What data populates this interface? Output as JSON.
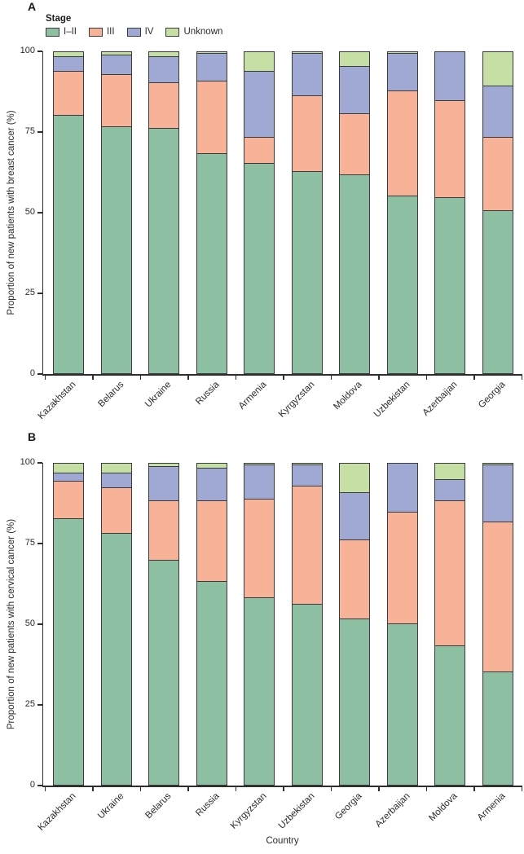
{
  "colors": {
    "segment_border": "#3b3b3b",
    "axis": "#2e2e2e",
    "text": "#2b2b2b",
    "background": "#ffffff"
  },
  "legend": {
    "title": "Stage",
    "items": [
      {
        "label": "I–II",
        "color": "#8dbfa2"
      },
      {
        "label": "III",
        "color": "#f8b298"
      },
      {
        "label": "IV",
        "color": "#9fa9d4"
      },
      {
        "label": "Unknown",
        "color": "#c6dfa5"
      }
    ]
  },
  "chart_data": [
    {
      "type": "bar",
      "stacked": true,
      "title": "A",
      "categories": [
        "Kazakhstan",
        "Belarus",
        "Ukraine",
        "Russia",
        "Armenia",
        "Kyrgyzstan",
        "Moldova",
        "Uzbekistan",
        "Azerbaijan",
        "Georgia"
      ],
      "series": [
        {
          "name": "I–II",
          "values": [
            80.5,
            77,
            76.5,
            68.5,
            65.5,
            63,
            62,
            55.5,
            55,
            51
          ]
        },
        {
          "name": "III",
          "values": [
            13.5,
            16,
            14,
            22.5,
            8,
            23.5,
            19,
            32.5,
            30,
            22.5
          ]
        },
        {
          "name": "IV",
          "values": [
            4.5,
            6,
            8,
            8.5,
            20.5,
            13,
            14.5,
            11.5,
            15,
            16
          ]
        },
        {
          "name": "Unknown",
          "values": [
            1.5,
            1,
            1.5,
            0.5,
            6,
            0.5,
            4.5,
            0.5,
            0,
            10.5
          ]
        }
      ],
      "xlabel": "",
      "ylabel": "Proportion of new patients with breast cancer (%)",
      "ylim": [
        0,
        100
      ],
      "yticks": [
        0,
        25,
        50,
        75,
        100
      ],
      "grid": false,
      "legend_position": "top-left"
    },
    {
      "type": "bar",
      "stacked": true,
      "title": "B",
      "categories": [
        "Kazakhstan",
        "Ukraine",
        "Belarus",
        "Russia",
        "Kyrgyzstan",
        "Uzbekistan",
        "Georgia",
        "Azerbaijan",
        "Moldova",
        "Armenia"
      ],
      "series": [
        {
          "name": "I–II",
          "values": [
            83,
            78.5,
            70,
            63.5,
            58.5,
            56.5,
            52,
            50.5,
            43.5,
            35.5
          ]
        },
        {
          "name": "III",
          "values": [
            11.5,
            14,
            18.5,
            25,
            30.5,
            36.5,
            24.5,
            34.5,
            45,
            46.5
          ]
        },
        {
          "name": "IV",
          "values": [
            2.5,
            4.5,
            10.5,
            10,
            10.5,
            6.5,
            14.5,
            15,
            6.5,
            17.5
          ]
        },
        {
          "name": "Unknown",
          "values": [
            3,
            3,
            1,
            1.5,
            0.5,
            0.5,
            9,
            0,
            5,
            0.5
          ]
        }
      ],
      "xlabel": "Country",
      "ylabel": "Proportion of new patients with cervical cancer (%)",
      "ylim": [
        0,
        100
      ],
      "yticks": [
        0,
        25,
        50,
        75,
        100
      ],
      "grid": false,
      "legend_position": "none"
    }
  ]
}
